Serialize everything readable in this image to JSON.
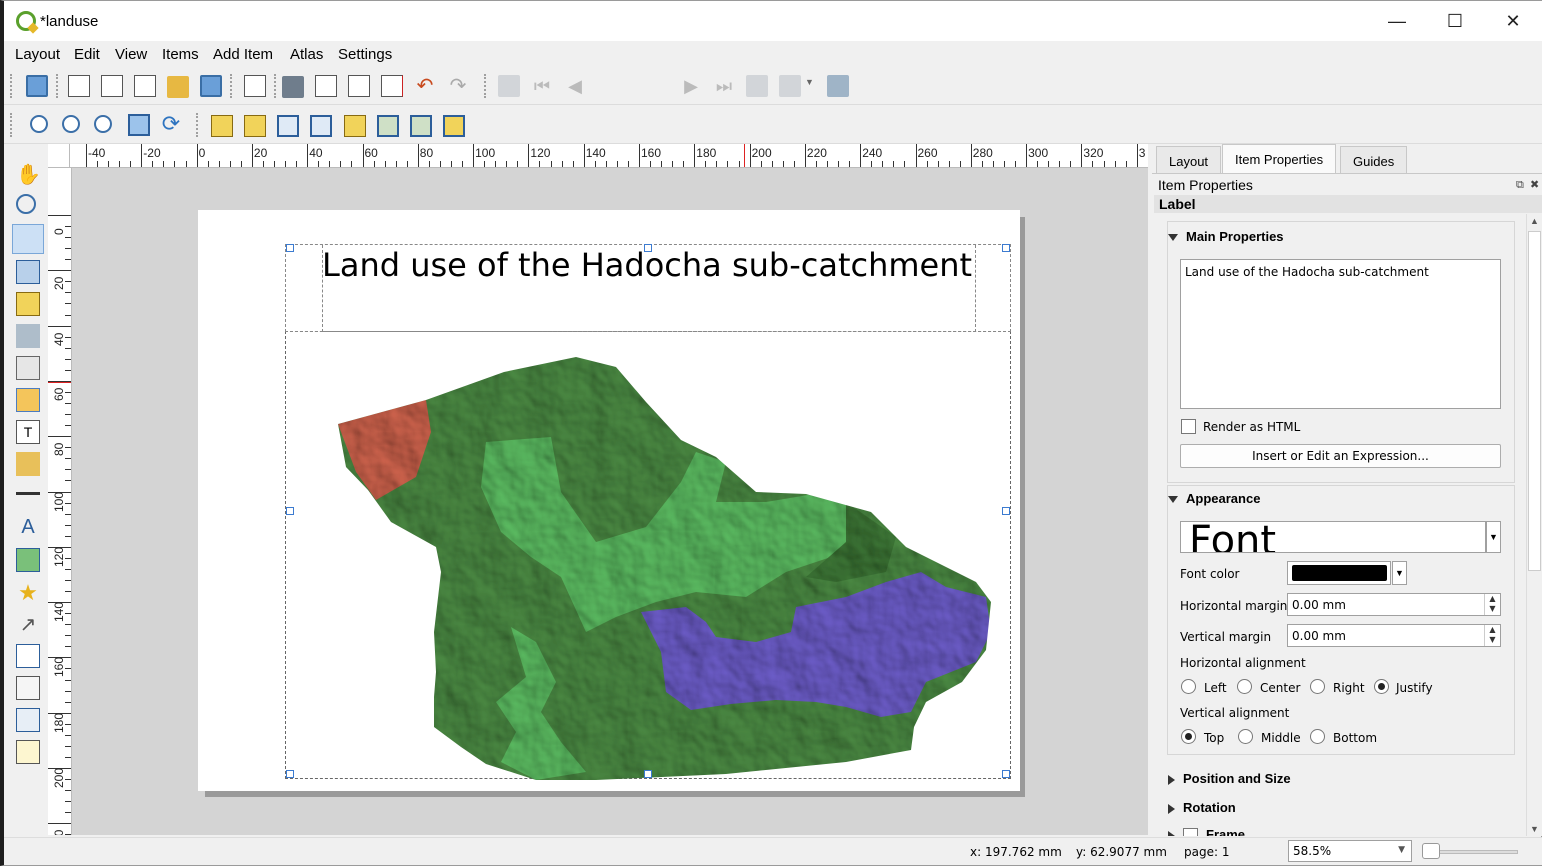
{
  "window": {
    "title": "*landuse",
    "minimize_glyph": "—",
    "maximize_glyph": "☐",
    "close_glyph": "✕"
  },
  "menu": [
    "Layout",
    "Edit",
    "View",
    "Items",
    "Add Item",
    "Atlas",
    "Settings"
  ],
  "toolbar": {
    "page_number": "1"
  },
  "ruler_top_labels": [
    "-40",
    "-20",
    "0",
    "20",
    "40",
    "60",
    "80",
    "100",
    "120",
    "140",
    "160",
    "180",
    "200",
    "220",
    "240",
    "260",
    "280",
    "300",
    "320",
    "3"
  ],
  "ruler_left_labels": [
    "0",
    "20",
    "40",
    "60",
    "80",
    "100",
    "120",
    "140",
    "160",
    "180",
    "200",
    "20"
  ],
  "layout": {
    "label_text": "Land use of the Hadocha sub-catchment"
  },
  "dock": {
    "tabs": [
      "Layout",
      "Item Properties",
      "Guides"
    ],
    "active_tab": "Item Properties",
    "panel_title": "Item Properties",
    "item_type": "Label",
    "main_properties": {
      "header": "Main Properties",
      "text_value": "Land use of the Hadocha sub-catchment",
      "render_html_label": "Render as HTML",
      "render_html_checked": false,
      "expression_button": "Insert or Edit an Expression..."
    },
    "appearance": {
      "header": "Appearance",
      "font_preview": "Font",
      "font_color_label": "Font color",
      "font_color": "#000000",
      "h_margin_label": "Horizontal margin",
      "h_margin_value": "0.00 mm",
      "v_margin_label": "Vertical margin",
      "v_margin_value": "0.00 mm",
      "h_align_label": "Horizontal alignment",
      "h_align_options": [
        "Left",
        "Center",
        "Right",
        "Justify"
      ],
      "h_align_selected": "Justify",
      "v_align_label": "Vertical alignment",
      "v_align_options": [
        "Top",
        "Middle",
        "Bottom"
      ],
      "v_align_selected": "Top"
    },
    "collapsed_sections": [
      "Position and Size",
      "Rotation",
      "Frame"
    ]
  },
  "status": {
    "x": "x: 197.762 mm",
    "y": "y: 62.9077 mm",
    "page": "page: 1",
    "zoom": "58.5%"
  },
  "colors": {
    "map_forest_dark": "#4e8f46",
    "map_forest_light": "#5fc265",
    "map_red": "#d4664f",
    "map_purple": "#7060cf"
  }
}
